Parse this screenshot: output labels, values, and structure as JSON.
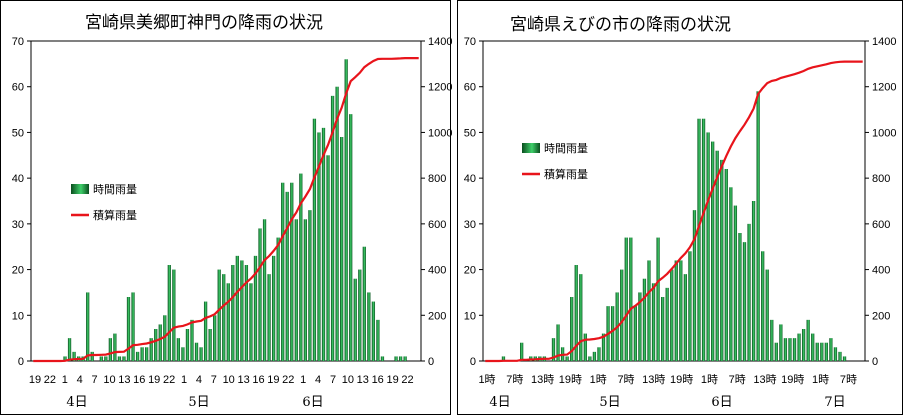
{
  "chart_data": [
    {
      "type": "bar",
      "title": "宮崎県美郷町神門の降雨の状況",
      "legend": [
        "時間雨量",
        "積算雨量"
      ],
      "legend_position": "left",
      "ylim": [
        0,
        70
      ],
      "y2lim": [
        0,
        1400
      ],
      "yticks": [
        "0",
        "10",
        "20",
        "30",
        "40",
        "50",
        "60",
        "70"
      ],
      "y2ticks": [
        "0",
        "200",
        "400",
        "600",
        "800",
        "1000",
        "1200",
        "1400"
      ],
      "x_tick_labels": [
        "19",
        "22",
        "1",
        "4",
        "7",
        "10",
        "13",
        "16",
        "19",
        "22",
        "1",
        "4",
        "7",
        "10",
        "13",
        "16",
        "19",
        "22",
        "1",
        "4",
        "7",
        "10",
        "13",
        "16",
        "19",
        "22"
      ],
      "day_labels": [
        "4日",
        "5日",
        "6日"
      ],
      "colors": {
        "bar_dark": "#0a4d1e",
        "bar_light": "#3fcf6a",
        "line": "#e8141b"
      },
      "hourly": [
        0,
        0,
        0,
        0,
        0,
        0,
        0,
        1,
        5,
        2,
        1,
        1,
        15,
        2,
        0,
        1,
        1,
        5,
        6,
        1,
        1,
        14,
        15,
        2,
        3,
        3,
        5,
        7,
        8,
        10,
        21,
        20,
        5,
        3,
        7,
        9,
        4,
        3,
        13,
        7,
        10,
        20,
        19,
        17,
        21,
        23,
        22,
        21,
        17,
        23,
        29,
        31,
        19,
        23,
        27,
        39,
        37,
        39,
        31,
        41,
        31,
        33,
        53,
        50,
        51,
        45,
        58,
        60,
        49,
        66,
        54,
        18,
        20,
        25,
        15,
        13,
        9,
        1,
        0,
        0,
        1,
        1,
        1,
        0,
        0,
        0
      ],
      "cumulative_end": 1325
    },
    {
      "type": "bar",
      "title": "宮崎県えびの市の降雨の状況",
      "legend": [
        "時間雨量",
        "積算雨量"
      ],
      "legend_position": "center-left",
      "ylim": [
        0,
        70
      ],
      "y2lim": [
        0,
        1400
      ],
      "yticks": [
        "0",
        "10",
        "20",
        "30",
        "40",
        "50",
        "60",
        "70"
      ],
      "y2ticks": [
        "0",
        "200",
        "400",
        "600",
        "800",
        "1000",
        "1200",
        "1400"
      ],
      "x_tick_labels": [
        "1時",
        "7時",
        "13時",
        "19時",
        "1時",
        "7時",
        "13時",
        "19時",
        "1時",
        "7時",
        "13時",
        "19時",
        "1時",
        "7時"
      ],
      "day_labels": [
        "4日",
        "5日",
        "6日",
        "7日"
      ],
      "colors": {
        "bar_dark": "#0a4d1e",
        "bar_light": "#3fcf6a",
        "line": "#e8141b"
      },
      "hourly": [
        0,
        0,
        0,
        0,
        1,
        0,
        0,
        0,
        4,
        0,
        1,
        1,
        1,
        1,
        0,
        5,
        8,
        3,
        1,
        14,
        21,
        19,
        6,
        1,
        2,
        3,
        6,
        12,
        12,
        15,
        20,
        27,
        27,
        12,
        15,
        18,
        22,
        17,
        27,
        14,
        16,
        20,
        22,
        22,
        19,
        24,
        33,
        53,
        53,
        50,
        48,
        46,
        44,
        42,
        38,
        34,
        28,
        26,
        30,
        35,
        59,
        24,
        20,
        9,
        4,
        8,
        5,
        5,
        5,
        6,
        7,
        9,
        6,
        4,
        4,
        4,
        5,
        3,
        2,
        1,
        0,
        0,
        0,
        0
      ],
      "cumulative_end": 1310
    }
  ]
}
